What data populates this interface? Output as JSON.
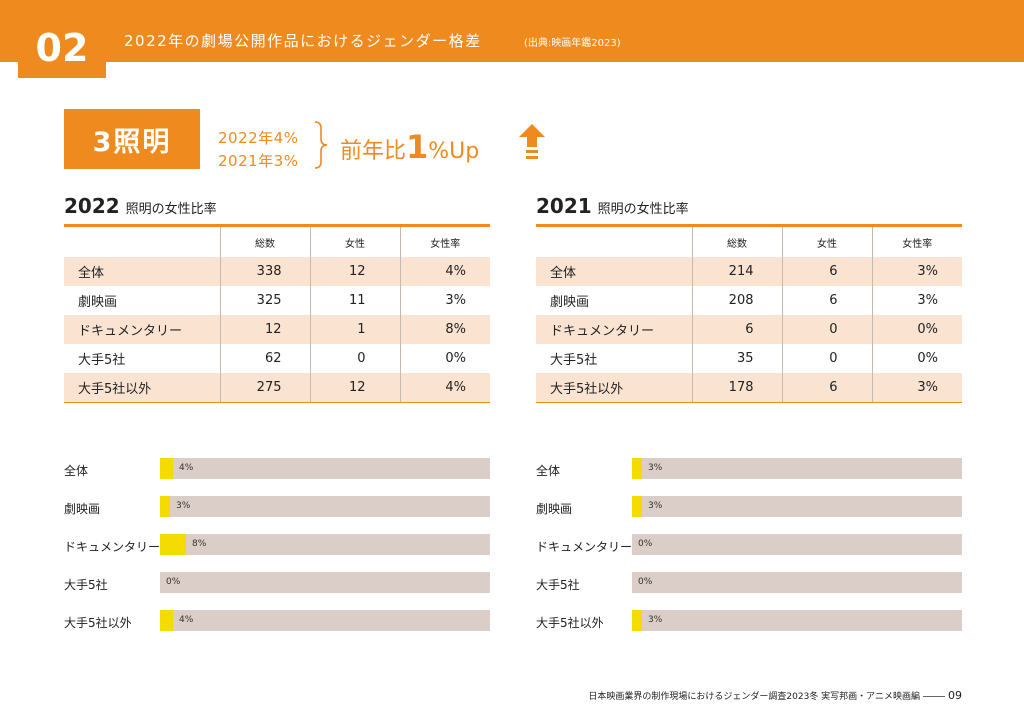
{
  "header": {
    "section_number": "02",
    "title": "2022年の劇場公開作品におけるジェンダー格差",
    "source": "(出典:映画年鑑2023)"
  },
  "category": {
    "label": "3照明",
    "year_2022": "2022年4%",
    "year_2021": "2021年3%",
    "comparison_prefix": "前年比",
    "comparison_number": "1",
    "comparison_suffix": "%Up"
  },
  "columns": [
    "総数",
    "女性",
    "女性率"
  ],
  "tables": [
    {
      "year": "2022",
      "subtitle": "照明の女性比率",
      "rows": [
        {
          "label": "全体",
          "total": "338",
          "female": "12",
          "rate": "4%"
        },
        {
          "label": "劇映画",
          "total": "325",
          "female": "11",
          "rate": "3%"
        },
        {
          "label": "ドキュメンタリー",
          "total": "12",
          "female": "1",
          "rate": "8%"
        },
        {
          "label": "大手5社",
          "total": "62",
          "female": "0",
          "rate": "0%"
        },
        {
          "label": "大手5社以外",
          "total": "275",
          "female": "12",
          "rate": "4%"
        }
      ]
    },
    {
      "year": "2021",
      "subtitle": "照明の女性比率",
      "rows": [
        {
          "label": "全体",
          "total": "214",
          "female": "6",
          "rate": "3%"
        },
        {
          "label": "劇映画",
          "total": "208",
          "female": "6",
          "rate": "3%"
        },
        {
          "label": "ドキュメンタリー",
          "total": "6",
          "female": "0",
          "rate": "0%"
        },
        {
          "label": "大手5社",
          "total": "35",
          "female": "0",
          "rate": "0%"
        },
        {
          "label": "大手5社以外",
          "total": "178",
          "female": "6",
          "rate": "3%"
        }
      ]
    }
  ],
  "chart_data": [
    {
      "type": "bar",
      "orientation": "horizontal",
      "categories": [
        "全体",
        "劇映画",
        "ドキュメンタリー",
        "大手5社",
        "大手5社以外"
      ],
      "values": [
        4,
        3,
        8,
        0,
        4
      ],
      "value_labels": [
        "4%",
        "3%",
        "8%",
        "0%",
        "4%"
      ],
      "xlim": [
        0,
        100
      ]
    },
    {
      "type": "bar",
      "orientation": "horizontal",
      "categories": [
        "全体",
        "劇映画",
        "ドキュメンタリー",
        "大手5社",
        "大手5社以外"
      ],
      "values": [
        3,
        3,
        0,
        0,
        3
      ],
      "value_labels": [
        "3%",
        "3%",
        "0%",
        "0%",
        "3%"
      ],
      "xlim": [
        0,
        100
      ]
    }
  ],
  "colors": {
    "accent": "#ef8a1f",
    "bar_fill": "#f5dc00",
    "bar_track": "#dbcdc7",
    "row_band": "#fbe3d2"
  },
  "footer": {
    "text": "日本映画業界の制作現場におけるジェンダー調査2023冬 実写邦画・アニメ映画編",
    "page": "09"
  }
}
